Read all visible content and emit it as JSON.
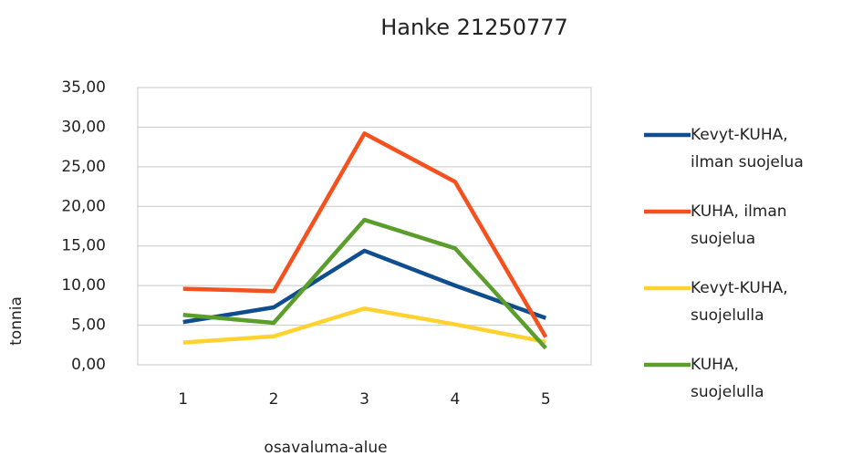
{
  "chart_data": {
    "type": "line",
    "title": "Hanke 21250777",
    "x_label": "osavaluma-alue",
    "y_label": "tonnia",
    "categories": [
      "1",
      "2",
      "3",
      "4",
      "5"
    ],
    "series": [
      {
        "name": "Kevyt-KUHA, ilman suojelua",
        "color": "#0f4d8f",
        "values": [
          5.4,
          7.25,
          14.4,
          10.0,
          5.9
        ]
      },
      {
        "name": "KUHA, ilman suojelua",
        "color": "#f4511e",
        "values": [
          9.6,
          9.3,
          29.2,
          23.1,
          3.5
        ]
      },
      {
        "name": "Kevyt-KUHA, suojelulla",
        "color": "#ffd230",
        "values": [
          2.8,
          3.6,
          7.1,
          5.1,
          2.9
        ]
      },
      {
        "name": "KUHA, suojelulla",
        "color": "#5b9e2b",
        "values": [
          6.3,
          5.3,
          18.3,
          14.7,
          2.1
        ]
      }
    ],
    "ylim": [
      0,
      35
    ],
    "yticks": [
      {
        "value": 0,
        "label": "0,00"
      },
      {
        "value": 5,
        "label": "5,00"
      },
      {
        "value": 10,
        "label": "10,00"
      },
      {
        "value": 15,
        "label": "15,00"
      },
      {
        "value": 20,
        "label": "20,00"
      },
      {
        "value": 25,
        "label": "25,00"
      },
      {
        "value": 30,
        "label": "30,00"
      },
      {
        "value": 35,
        "label": "35,00"
      }
    ],
    "grid": true,
    "legend": "right"
  }
}
